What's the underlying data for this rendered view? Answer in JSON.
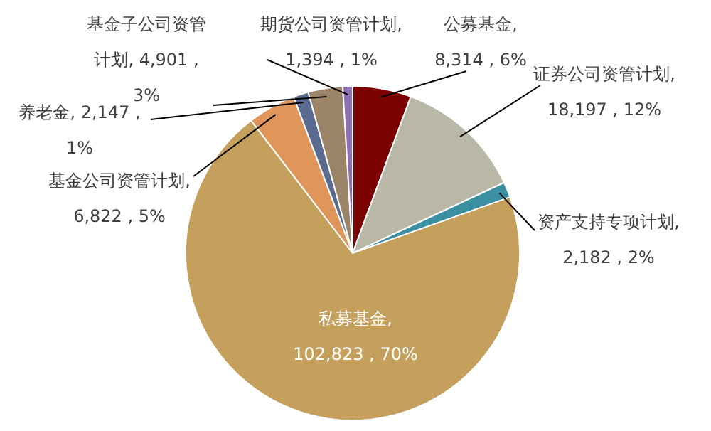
{
  "chart_data": {
    "type": "pie",
    "categories": [
      "公募基金",
      "证券公司资管计划",
      "资产支持专项计划",
      "私募基金",
      "基金公司资管计划",
      "养老金",
      "基金子公司资管计划",
      "期货公司资管计划"
    ],
    "values": [
      8314,
      18197,
      2182,
      102823,
      6822,
      2147,
      4901,
      1394
    ],
    "colors": [
      "#7b0000",
      "#b9b7a5",
      "#3a8fa0",
      "#c4a05c",
      "#e0955a",
      "#5a6b8f",
      "#9c8468",
      "#8e6fb0"
    ],
    "value_labels": [
      ", 8,314 , 6%",
      ", 18,197 , 12%",
      ", 2,182 , 2%",
      ", 102,823 , 70%",
      ", 6,822 , 5%",
      ", 2,147 , 1%",
      ", 4,901 , 3%",
      ", 1,394 , 1%"
    ],
    "legend": false
  }
}
